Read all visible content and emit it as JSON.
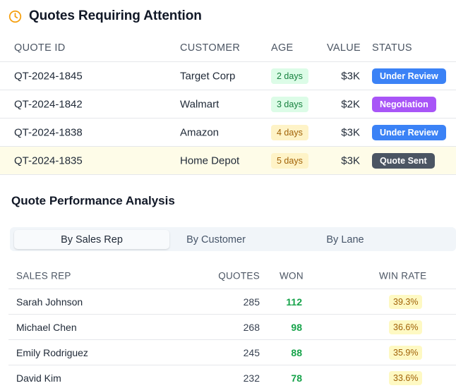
{
  "attention": {
    "title": "Quotes Requiring Attention",
    "icon": "clock-icon",
    "accent": "#f59e0b",
    "columns": {
      "id": "QUOTE ID",
      "customer": "CUSTOMER",
      "age": "AGE",
      "value": "VALUE",
      "status": "STATUS"
    },
    "rows": [
      {
        "id": "QT-2024-1845",
        "customer": "Target Corp",
        "age": "2 days",
        "value": "$3K",
        "status": "Under Review",
        "age_level": "green",
        "status_color": "#3b82f6"
      },
      {
        "id": "QT-2024-1842",
        "customer": "Walmart",
        "age": "3 days",
        "value": "$2K",
        "status": "Negotiation",
        "age_level": "green",
        "status_color": "#a855f7"
      },
      {
        "id": "QT-2024-1838",
        "customer": "Amazon",
        "age": "4 days",
        "value": "$3K",
        "status": "Under Review",
        "age_level": "yellow",
        "status_color": "#3b82f6"
      },
      {
        "id": "QT-2024-1835",
        "customer": "Home Depot",
        "age": "5 days",
        "value": "$3K",
        "status": "Quote Sent",
        "age_level": "yellow",
        "status_color": "#4b5563"
      }
    ]
  },
  "performance": {
    "title": "Quote Performance Analysis",
    "tabs": [
      {
        "label": "By Sales Rep",
        "active": true
      },
      {
        "label": "By Customer",
        "active": false
      },
      {
        "label": "By Lane",
        "active": false
      }
    ],
    "columns": {
      "rep": "SALES REP",
      "quotes": "QUOTES",
      "won": "WON",
      "rate": "WIN RATE"
    },
    "rows": [
      {
        "rep": "Sarah Johnson",
        "quotes": "285",
        "won": "112",
        "rate": "39.3%"
      },
      {
        "rep": "Michael Chen",
        "quotes": "268",
        "won": "98",
        "rate": "36.6%"
      },
      {
        "rep": "Emily Rodriguez",
        "quotes": "245",
        "won": "88",
        "rate": "35.9%"
      },
      {
        "rep": "David Kim",
        "quotes": "232",
        "won": "78",
        "rate": "33.6%"
      }
    ]
  }
}
